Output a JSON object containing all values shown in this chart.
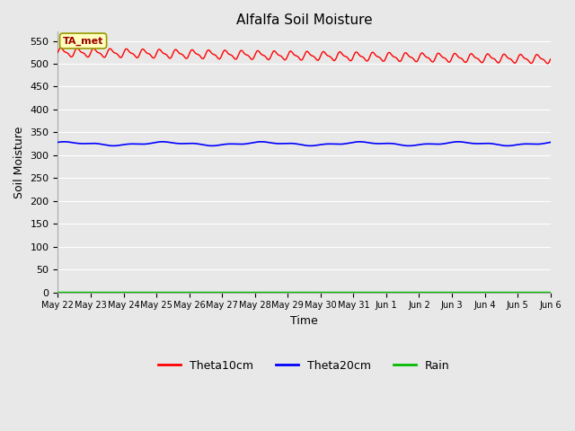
{
  "title": "Alfalfa Soil Moisture",
  "xlabel": "Time",
  "ylabel": "Soil Moisture",
  "annotation_text": "TA_met",
  "legend_labels": [
    "Theta10cm",
    "Theta20cm",
    "Rain"
  ],
  "legend_colors": [
    "#ff0000",
    "#0000ff",
    "#00bb00"
  ],
  "ylim": [
    0,
    570
  ],
  "yticks": [
    0,
    50,
    100,
    150,
    200,
    250,
    300,
    350,
    400,
    450,
    500,
    550
  ],
  "x_tick_labels": [
    "May 22",
    "May 23",
    "May 24",
    "May 25",
    "May 26",
    "May 27",
    "May 28",
    "May 29",
    "May 30",
    "May 31",
    "Jun 1",
    "Jun 2",
    "Jun 3",
    "Jun 4",
    "Jun 5",
    "Jun 6"
  ],
  "background_color": "#e8e8e8",
  "plot_bg_color": "#e8e8e8",
  "grid_color": "#ffffff",
  "theta10_base": 525,
  "theta10_amp": 8,
  "theta10_trend": -15,
  "theta20_base": 325,
  "theta20_amp": 3,
  "rain_value": 1
}
